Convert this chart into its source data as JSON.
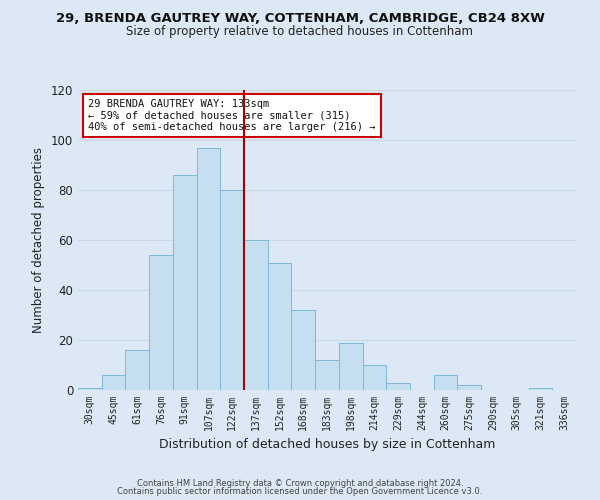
{
  "title1": "29, BRENDA GAUTREY WAY, COTTENHAM, CAMBRIDGE, CB24 8XW",
  "title2": "Size of property relative to detached houses in Cottenham",
  "xlabel": "Distribution of detached houses by size in Cottenham",
  "ylabel": "Number of detached properties",
  "bar_labels": [
    "30sqm",
    "45sqm",
    "61sqm",
    "76sqm",
    "91sqm",
    "107sqm",
    "122sqm",
    "137sqm",
    "152sqm",
    "168sqm",
    "183sqm",
    "198sqm",
    "214sqm",
    "229sqm",
    "244sqm",
    "260sqm",
    "275sqm",
    "290sqm",
    "305sqm",
    "321sqm",
    "336sqm"
  ],
  "bar_values": [
    1,
    6,
    16,
    54,
    86,
    97,
    80,
    60,
    51,
    32,
    12,
    19,
    10,
    3,
    0,
    6,
    2,
    0,
    0,
    1,
    0
  ],
  "bar_color": "#c5dff0",
  "bar_edge_color": "#7db8d8",
  "vline_color": "#aa0000",
  "annotation_text": "29 BRENDA GAUTREY WAY: 133sqm\n← 59% of detached houses are smaller (315)\n40% of semi-detached houses are larger (216) →",
  "annotation_box_color": "#ffffff",
  "annotation_box_edge": "#cc0000",
  "grid_color": "#c8d8e8",
  "background_color": "#dce8f5",
  "footer1": "Contains HM Land Registry data © Crown copyright and database right 2024.",
  "footer2": "Contains public sector information licensed under the Open Government Licence v3.0.",
  "ylim": [
    0,
    120
  ],
  "yticks": [
    0,
    20,
    40,
    60,
    80,
    100,
    120
  ]
}
